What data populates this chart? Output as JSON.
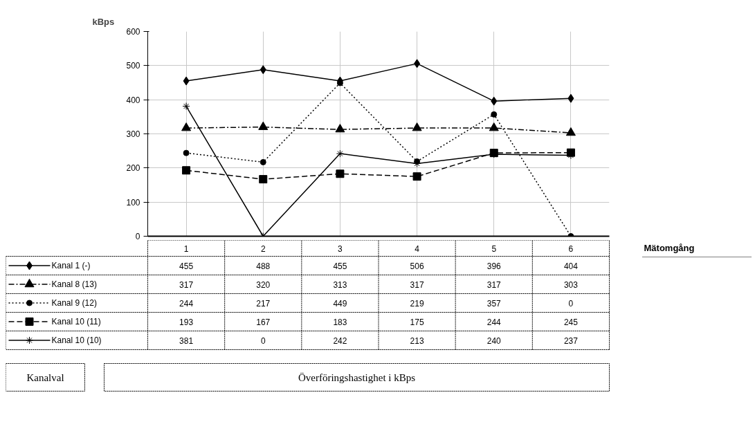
{
  "chart_data": {
    "type": "line",
    "xlabel": "Mätomgång",
    "ylabel": "kBps",
    "categories": [
      "1",
      "2",
      "3",
      "4",
      "5",
      "6"
    ],
    "ylim": [
      0,
      600
    ],
    "yticks": [
      0,
      100,
      200,
      300,
      400,
      500,
      600
    ],
    "grid": true,
    "legend": "bottom left",
    "data_labels": true,
    "annotations": [
      "Kanalval",
      "Överföringshastighet i kBps"
    ],
    "series": [
      {
        "name": "Kanal 1 (-)",
        "color": "#000000",
        "marker": "diamond",
        "line_style": "solid",
        "values": [
          455,
          488,
          455,
          506,
          396,
          404
        ]
      },
      {
        "name": "Kanal 8 (13)",
        "color": "#000000",
        "marker": "triangle",
        "line_style": "dashdot",
        "values": [
          317,
          320,
          313,
          317,
          317,
          303
        ]
      },
      {
        "name": "Kanal 9 (12)",
        "color": "#000000",
        "marker": "circle",
        "line_style": "dotted",
        "values": [
          244,
          217,
          449,
          219,
          357,
          0
        ]
      },
      {
        "name": "Kanal 10 (11)",
        "color": "#000000",
        "marker": "square",
        "line_style": "dashed",
        "values": [
          193,
          167,
          183,
          175,
          244,
          245
        ]
      },
      {
        "name": "Kanal 10 (10)",
        "color": "#000000",
        "marker": "cross",
        "line_style": "solid",
        "values": [
          381,
          0,
          242,
          213,
          240,
          237
        ]
      }
    ]
  }
}
